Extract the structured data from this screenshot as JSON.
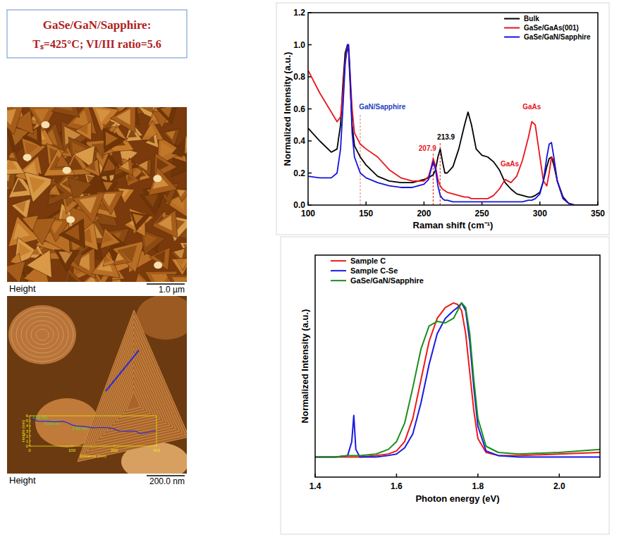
{
  "header": {
    "title": "GaSe/GaN/Sapphire:",
    "conditions": "Tₛ=425°C; VI/III ratio=5.6"
  },
  "afm_images": [
    {
      "label": "Height",
      "scale_bar": "1.0 µm"
    },
    {
      "label": "Height",
      "scale_bar": "200.0 nm"
    }
  ],
  "chart_data": [
    {
      "type": "line",
      "x_label": "Raman shift (cm⁻¹)",
      "y_label": "Normalized Intensity (a.u.)",
      "x": [
        100,
        110,
        120,
        125,
        128,
        130,
        132,
        134,
        135,
        136,
        138,
        140,
        145,
        150,
        160,
        170,
        180,
        190,
        200,
        204,
        206,
        208,
        210,
        212,
        214,
        216,
        218,
        220,
        225,
        230,
        235,
        238,
        241,
        245,
        250,
        255,
        260,
        265,
        270,
        275,
        280,
        285,
        290,
        293,
        296,
        300,
        303,
        306,
        308,
        310,
        312,
        315,
        320,
        325,
        330,
        340,
        350
      ],
      "series": [
        {
          "name": "Bulk",
          "color": "#000000",
          "values": [
            0.48,
            0.4,
            0.33,
            0.35,
            0.5,
            0.75,
            0.95,
            1.0,
            0.95,
            0.8,
            0.5,
            0.37,
            0.3,
            0.25,
            0.18,
            0.15,
            0.14,
            0.14,
            0.16,
            0.17,
            0.18,
            0.19,
            0.22,
            0.3,
            0.35,
            0.27,
            0.2,
            0.2,
            0.24,
            0.35,
            0.5,
            0.58,
            0.5,
            0.35,
            0.31,
            0.3,
            0.27,
            0.22,
            0.14,
            0.1,
            0.07,
            0.06,
            0.05,
            0.05,
            0.06,
            0.08,
            0.15,
            0.24,
            0.29,
            0.3,
            0.25,
            0.15,
            0.05,
            0.01,
            0,
            null,
            null
          ]
        },
        {
          "name": "GaSe/GaAs(001)",
          "color": "#e8141c",
          "values": [
            0.84,
            0.7,
            0.58,
            0.52,
            0.55,
            0.7,
            0.9,
            1.0,
            0.97,
            0.85,
            0.6,
            0.45,
            0.38,
            0.35,
            0.3,
            0.22,
            0.17,
            0.15,
            0.15,
            0.18,
            0.23,
            0.29,
            0.24,
            0.16,
            0.12,
            0.1,
            0.09,
            0.08,
            0.07,
            0.06,
            0.05,
            0.05,
            0.04,
            0.04,
            0.04,
            0.04,
            0.06,
            0.1,
            0.16,
            0.14,
            0.18,
            0.28,
            0.42,
            0.52,
            0.5,
            0.3,
            0.15,
            0.12,
            0.2,
            0.3,
            0.28,
            0.15,
            0.04,
            0.01,
            0,
            0,
            0
          ]
        },
        {
          "name": "GaSe/GaN/Sapphire",
          "color": "#1414e0",
          "values": [
            0.18,
            0.17,
            0.17,
            0.2,
            0.35,
            0.6,
            0.88,
            1.0,
            1.0,
            0.85,
            0.45,
            0.3,
            0.2,
            0.17,
            0.14,
            0.12,
            0.11,
            0.11,
            0.13,
            0.16,
            0.22,
            0.27,
            0.22,
            0.12,
            0.06,
            0.04,
            0.03,
            0.03,
            0.02,
            0.02,
            0.02,
            0.02,
            0.02,
            0.02,
            0.02,
            0.02,
            0.02,
            0.02,
            0.02,
            0.02,
            0.02,
            0.02,
            0.03,
            0.03,
            0.04,
            0.07,
            0.15,
            0.3,
            0.38,
            0.39,
            0.3,
            0.15,
            0.04,
            0.01,
            0,
            0,
            0
          ]
        }
      ],
      "xlim": [
        100,
        350
      ],
      "ylim": [
        0,
        1.2
      ],
      "xticks": [
        100,
        150,
        200,
        250,
        300,
        350
      ],
      "yticks": [
        {
          "value": 0,
          "label": "0.0"
        },
        {
          "value": 0.2,
          "label": "0.2"
        },
        {
          "value": 0.4,
          "label": "0.4"
        },
        {
          "value": 0.6,
          "label": "0.6"
        },
        {
          "value": 0.8,
          "label": "0.8"
        },
        {
          "value": 1,
          "label": "1.0"
        },
        {
          "value": 1.2,
          "label": "1.2"
        }
      ],
      "grid": false,
      "legend": "upper right",
      "annotations": [
        {
          "text": "GaN/Sapphire",
          "x": 164,
          "y": 0.6,
          "color": "#1f3fbf"
        },
        {
          "text": "207.9",
          "x": 203,
          "y": 0.34,
          "color": "#e8141c"
        },
        {
          "text": "213.9",
          "x": 219,
          "y": 0.41,
          "color": "#000000"
        },
        {
          "text": "GaAs",
          "x": 293,
          "y": 0.6,
          "color": "#e8141c"
        },
        {
          "text": "GaAs",
          "x": 274,
          "y": 0.24,
          "color": "#e8141c"
        }
      ],
      "vlines": [
        {
          "x": 145,
          "top": 0.57,
          "color": "#e87a7a"
        },
        {
          "x": 207.9,
          "top": 0.32,
          "color": "#e8141c"
        },
        {
          "x": 213.9,
          "top": 0.39,
          "color": "#e8141c"
        }
      ]
    },
    {
      "type": "line",
      "x_label": "Photon energy (eV)",
      "y_label": "Normalized Intensity (a.u.)",
      "x": [
        1.4,
        1.45,
        1.48,
        1.49,
        1.495,
        1.5,
        1.51,
        1.55,
        1.58,
        1.6,
        1.62,
        1.64,
        1.66,
        1.68,
        1.7,
        1.72,
        1.74,
        1.75,
        1.76,
        1.77,
        1.78,
        1.79,
        1.8,
        1.82,
        1.85,
        1.9,
        2.0,
        2.1
      ],
      "series": [
        {
          "name": "Sample C",
          "color": "#f01818",
          "values": [
            0,
            0,
            0,
            0,
            0,
            0,
            0,
            0.01,
            0.02,
            0.04,
            0.1,
            0.25,
            0.5,
            0.75,
            0.9,
            0.97,
            1.0,
            0.99,
            0.95,
            0.8,
            0.55,
            0.3,
            0.12,
            0.03,
            0.01,
            0.01,
            0.02,
            0.03
          ]
        },
        {
          "name": "Sample C-Se",
          "color": "#1a1ae6",
          "values": [
            0,
            0,
            0.01,
            0.1,
            0.27,
            0.05,
            0,
            0,
            0.01,
            0.02,
            0.06,
            0.15,
            0.35,
            0.6,
            0.8,
            0.9,
            0.95,
            0.97,
            1.0,
            0.95,
            0.75,
            0.45,
            0.2,
            0.04,
            0.01,
            0,
            0,
            0
          ]
        },
        {
          "name": "GaSe/GaN/Sapphire",
          "color": "#1a8f1a",
          "values": [
            0,
            0,
            0.01,
            0.01,
            0.01,
            0.01,
            0.01,
            0.02,
            0.05,
            0.1,
            0.22,
            0.45,
            0.7,
            0.85,
            0.88,
            0.87,
            0.9,
            0.95,
            1.0,
            0.97,
            0.8,
            0.5,
            0.25,
            0.07,
            0.03,
            0.02,
            0.03,
            0.05
          ]
        }
      ],
      "xlim": [
        1.4,
        2.1
      ],
      "ylim": [
        -0.13,
        1.31
      ],
      "xticks": [
        1.4,
        1.6,
        1.8,
        {
          "value": 2,
          "label": "2.0"
        }
      ],
      "tick_labels": "x",
      "grid": false,
      "legend": "upper left"
    },
    {
      "type": "line",
      "x_label": "Distance (nm)",
      "y_label": "Height (nm)",
      "x": [
        0,
        10,
        20,
        40,
        60,
        80,
        90,
        100,
        110,
        130,
        150,
        170,
        190,
        200,
        210,
        230,
        250,
        260,
        270,
        290,
        300
      ],
      "series": [
        {
          "color": "#2a2ad8",
          "values": [
            5.3,
            5.3,
            4.9,
            4.9,
            4.8,
            4.9,
            4.6,
            4.2,
            4.0,
            3.9,
            3.6,
            3.7,
            3.6,
            3.4,
            3.0,
            2.9,
            3.0,
            2.5,
            2.6,
            2.9,
            3.0
          ]
        }
      ],
      "xlim": [
        0,
        300
      ],
      "ylim": [
        0,
        6
      ],
      "xticks": [
        0,
        100,
        200,
        300
      ],
      "yticks": [
        0,
        1,
        2,
        3,
        4,
        5,
        6
      ],
      "grid": false,
      "annotations": [
        {
          "text": "1.53 nm",
          "x": 25,
          "y": 5.5,
          "color": "#3fe03f"
        },
        {
          "text": "0.93 nm",
          "x": 55,
          "y": 4.2,
          "color": "#3fe03f"
        },
        {
          "text": "0.82 nm",
          "x": 120,
          "y": 3.2,
          "color": "#3fe03f"
        }
      ]
    }
  ]
}
